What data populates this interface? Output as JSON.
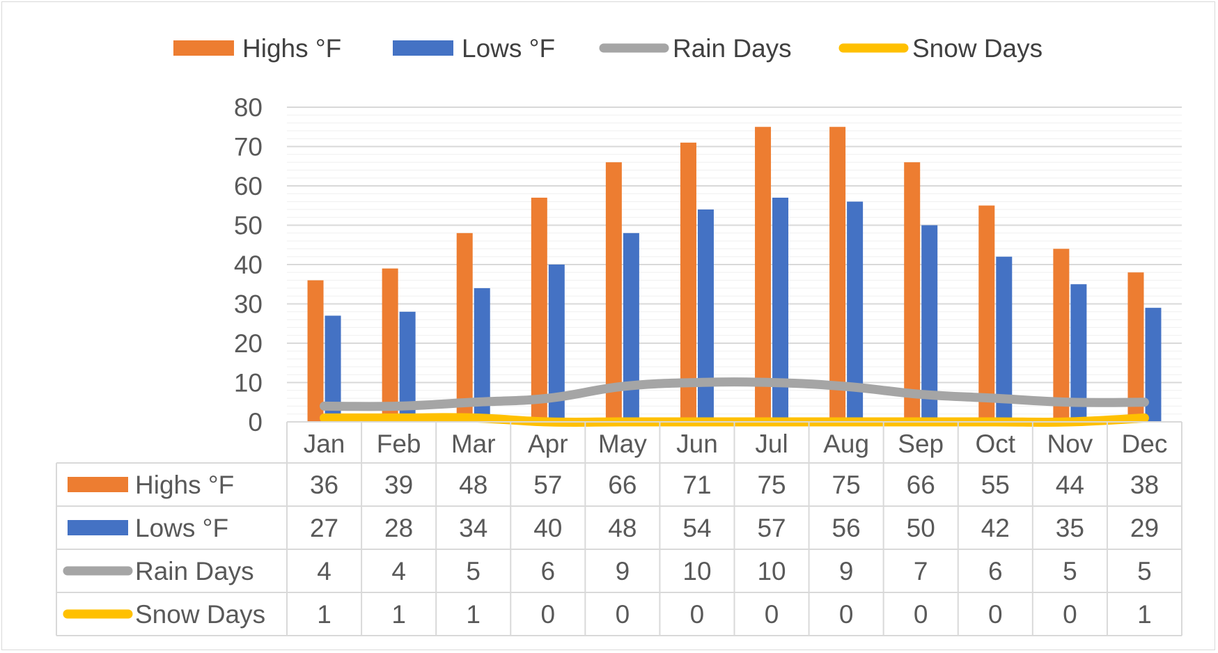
{
  "chart_data": {
    "type": "bar",
    "categories": [
      "Jan",
      "Feb",
      "Mar",
      "Apr",
      "May",
      "Jun",
      "Jul",
      "Aug",
      "Sep",
      "Oct",
      "Nov",
      "Dec"
    ],
    "series": [
      {
        "name": "Highs °F",
        "kind": "bar",
        "color": "#ED7D31",
        "values": [
          36,
          39,
          48,
          57,
          66,
          71,
          75,
          75,
          66,
          55,
          44,
          38
        ]
      },
      {
        "name": "Lows °F",
        "kind": "bar",
        "color": "#4472C4",
        "values": [
          27,
          28,
          34,
          40,
          48,
          54,
          57,
          56,
          50,
          42,
          35,
          29
        ]
      },
      {
        "name": "Rain Days",
        "kind": "line",
        "color": "#A5A5A5",
        "values": [
          4,
          4,
          5,
          6,
          9,
          10,
          10,
          9,
          7,
          6,
          5,
          5
        ]
      },
      {
        "name": "Snow Days",
        "kind": "line",
        "color": "#FFC000",
        "values": [
          1,
          1,
          1,
          0,
          0,
          0,
          0,
          0,
          0,
          0,
          0,
          1
        ]
      }
    ],
    "ylim": [
      0,
      80
    ],
    "yticks": [
      0,
      10,
      20,
      30,
      40,
      50,
      60,
      70,
      80
    ],
    "grid": true,
    "legend_position": "top",
    "data_table": true
  }
}
